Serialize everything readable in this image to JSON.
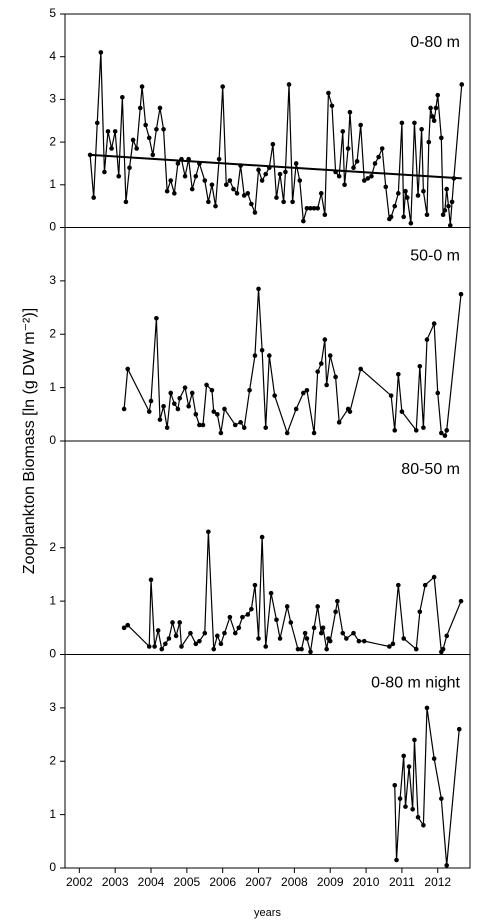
{
  "chart_data": [
    {
      "type": "line",
      "label": "0-80 m",
      "ylabel": "Zooplankton Biomass [ln (g DW m⁻²)]",
      "xlim": [
        2001.6,
        2012.9
      ],
      "ylim": [
        0,
        5
      ],
      "yticks": [
        0,
        1,
        2,
        3,
        4,
        5
      ],
      "series": [
        {
          "color": "#000000",
          "x": [
            2002.3,
            2002.4,
            2002.5,
            2002.6,
            2002.7,
            2002.8,
            2002.9,
            2003.0,
            2003.1,
            2003.2,
            2003.3,
            2003.4,
            2003.5,
            2003.6,
            2003.7,
            2003.75,
            2003.85,
            2003.95,
            2004.05,
            2004.15,
            2004.25,
            2004.35,
            2004.45,
            2004.55,
            2004.65,
            2004.75,
            2004.85,
            2004.95,
            2005.05,
            2005.15,
            2005.25,
            2005.35,
            2005.5,
            2005.6,
            2005.7,
            2005.8,
            2005.9,
            2006.0,
            2006.1,
            2006.2,
            2006.3,
            2006.4,
            2006.5,
            2006.6,
            2006.7,
            2006.8,
            2006.9,
            2007.0,
            2007.1,
            2007.2,
            2007.3,
            2007.4,
            2007.5,
            2007.6,
            2007.7,
            2007.75,
            2007.85,
            2007.95,
            2008.05,
            2008.15,
            2008.25,
            2008.35,
            2008.45,
            2008.55,
            2008.65,
            2008.75,
            2008.85,
            2008.95,
            2009.05,
            2009.15,
            2009.25,
            2009.35,
            2009.4,
            2009.5,
            2009.55,
            2009.65,
            2009.75,
            2009.85,
            2009.95,
            2010.05,
            2010.15,
            2010.25,
            2010.35,
            2010.45,
            2010.55,
            2010.65,
            2010.7,
            2010.8,
            2010.9,
            2011.0,
            2011.05,
            2011.1,
            2011.15,
            2011.25,
            2011.35,
            2011.45,
            2011.55,
            2011.6,
            2011.7,
            2011.75,
            2011.8,
            2011.85,
            2011.9,
            2011.95,
            2012.0,
            2012.1,
            2012.15,
            2012.2,
            2012.25,
            2012.3,
            2012.35,
            2012.4,
            2012.45,
            2012.67
          ],
          "values": [
            1.7,
            0.7,
            2.45,
            4.1,
            1.3,
            2.25,
            1.85,
            2.25,
            1.2,
            3.05,
            0.6,
            1.4,
            2.05,
            1.85,
            2.8,
            3.3,
            2.4,
            2.1,
            1.7,
            2.3,
            2.8,
            2.3,
            0.85,
            1.1,
            0.8,
            1.5,
            1.6,
            1.2,
            1.6,
            0.9,
            1.2,
            1.5,
            1.1,
            0.6,
            1.0,
            0.5,
            1.6,
            3.3,
            1.0,
            1.1,
            0.9,
            0.8,
            1.45,
            0.75,
            0.8,
            0.55,
            0.35,
            1.35,
            1.1,
            1.25,
            1.4,
            1.95,
            0.7,
            1.25,
            0.6,
            1.3,
            3.35,
            0.6,
            1.5,
            1.1,
            0.15,
            0.45,
            0.45,
            0.45,
            0.45,
            0.8,
            0.3,
            3.15,
            2.85,
            1.3,
            1.2,
            2.25,
            1.0,
            1.85,
            2.7,
            1.4,
            1.55,
            2.4,
            1.1,
            1.15,
            1.2,
            1.5,
            1.65,
            1.85,
            0.95,
            0.2,
            0.25,
            0.5,
            0.8,
            2.45,
            0.25,
            0.85,
            0.7,
            0.1,
            2.45,
            0.75,
            2.3,
            0.85,
            0.3,
            2.0,
            2.8,
            2.6,
            2.5,
            2.8,
            3.1,
            2.1,
            0.3,
            0.4,
            0.9,
            0.5,
            0.05,
            0.6,
            1.15,
            3.35
          ]
        }
      ],
      "trend": {
        "x": [
          2002.3,
          2012.67
        ],
        "values": [
          1.7,
          1.15
        ]
      }
    },
    {
      "type": "line",
      "label": "50-0 m",
      "xlim": [
        2001.6,
        2012.9
      ],
      "ylim": [
        0,
        4
      ],
      "yticks": [
        0,
        1,
        2,
        3
      ],
      "series": [
        {
          "color": "#000000",
          "x": [
            2003.25,
            2003.35,
            2003.95,
            2004.0,
            2004.15,
            2004.25,
            2004.35,
            2004.45,
            2004.55,
            2004.65,
            2004.75,
            2004.8,
            2004.95,
            2005.05,
            2005.15,
            2005.25,
            2005.35,
            2005.45,
            2005.55,
            2005.7,
            2005.75,
            2005.85,
            2005.95,
            2006.05,
            2006.35,
            2006.5,
            2006.6,
            2006.75,
            2006.9,
            2007.0,
            2007.1,
            2007.2,
            2007.3,
            2007.45,
            2007.8,
            2008.05,
            2008.25,
            2008.35,
            2008.55,
            2008.65,
            2008.75,
            2008.85,
            2008.9,
            2009.0,
            2009.15,
            2009.25,
            2009.5,
            2009.55,
            2009.85,
            2010.7,
            2010.8,
            2010.9,
            2011.0,
            2011.4,
            2011.5,
            2011.6,
            2011.7,
            2011.9,
            2012.0,
            2012.1,
            2012.2,
            2012.25,
            2012.65
          ],
          "values": [
            0.6,
            1.35,
            0.55,
            0.75,
            2.3,
            0.4,
            0.65,
            0.25,
            0.9,
            0.7,
            0.6,
            0.8,
            1.0,
            0.65,
            0.9,
            0.5,
            0.3,
            0.3,
            1.05,
            0.95,
            0.55,
            0.5,
            0.15,
            0.6,
            0.3,
            0.35,
            0.25,
            0.95,
            1.6,
            2.85,
            1.7,
            0.25,
            1.6,
            0.85,
            0.15,
            0.6,
            0.9,
            0.95,
            0.15,
            1.3,
            1.45,
            1.9,
            1.05,
            1.6,
            1.2,
            0.35,
            0.6,
            0.55,
            1.35,
            0.85,
            0.2,
            1.25,
            0.55,
            0.2,
            1.4,
            0.25,
            1.9,
            2.2,
            0.9,
            0.15,
            0.1,
            0.2,
            2.75
          ]
        }
      ]
    },
    {
      "type": "line",
      "label": "80-50 m",
      "xlim": [
        2001.6,
        2012.9
      ],
      "ylim": [
        0,
        4
      ],
      "yticks": [
        0,
        1,
        2
      ],
      "series": [
        {
          "color": "#000000",
          "x": [
            2003.25,
            2003.35,
            2003.95,
            2004.0,
            2004.1,
            2004.2,
            2004.3,
            2004.4,
            2004.5,
            2004.6,
            2004.7,
            2004.8,
            2004.85,
            2005.1,
            2005.25,
            2005.35,
            2005.5,
            2005.6,
            2005.75,
            2005.85,
            2005.95,
            2006.05,
            2006.2,
            2006.35,
            2006.45,
            2006.55,
            2006.7,
            2006.8,
            2006.9,
            2007.0,
            2007.1,
            2007.2,
            2007.35,
            2007.5,
            2007.6,
            2007.8,
            2007.9,
            2008.1,
            2008.2,
            2008.3,
            2008.35,
            2008.45,
            2008.55,
            2008.65,
            2008.75,
            2008.8,
            2008.9,
            2008.95,
            2009.0,
            2009.15,
            2009.2,
            2009.35,
            2009.45,
            2009.65,
            2009.8,
            2009.95,
            2010.65,
            2010.75,
            2010.9,
            2011.05,
            2011.4,
            2011.5,
            2011.65,
            2011.9,
            2012.1,
            2012.15,
            2012.25,
            2012.65
          ],
          "values": [
            0.5,
            0.55,
            0.15,
            1.4,
            0.15,
            0.45,
            0.1,
            0.2,
            0.3,
            0.6,
            0.35,
            0.6,
            0.15,
            0.4,
            0.2,
            0.25,
            0.4,
            2.3,
            0.1,
            0.35,
            0.2,
            0.4,
            0.7,
            0.4,
            0.5,
            0.7,
            0.75,
            0.85,
            1.3,
            0.3,
            2.2,
            0.15,
            1.15,
            0.65,
            0.3,
            0.9,
            0.6,
            0.1,
            0.1,
            0.4,
            0.3,
            0.05,
            0.5,
            0.9,
            0.4,
            0.5,
            0.1,
            0.3,
            0.25,
            0.8,
            1.0,
            0.4,
            0.3,
            0.4,
            0.25,
            0.25,
            0.15,
            0.2,
            1.3,
            0.3,
            0.1,
            0.8,
            1.3,
            1.45,
            0.05,
            0.1,
            0.35,
            1.0
          ]
        }
      ]
    },
    {
      "type": "line",
      "label": "0-80 m night",
      "xlabel": "years",
      "xlim": [
        2001.6,
        2012.9
      ],
      "ylim": [
        0,
        4
      ],
      "yticks": [
        0,
        1,
        2,
        3
      ],
      "xticks": [
        2002,
        2003,
        2004,
        2005,
        2006,
        2007,
        2008,
        2009,
        2010,
        2011,
        2012
      ],
      "series": [
        {
          "color": "#000000",
          "x": [
            2010.8,
            2010.85,
            2010.95,
            2011.05,
            2011.1,
            2011.2,
            2011.3,
            2011.35,
            2011.45,
            2011.6,
            2011.7,
            2011.9,
            2012.1,
            2012.25,
            2012.6
          ],
          "values": [
            1.55,
            0.15,
            1.3,
            2.1,
            1.15,
            1.9,
            1.1,
            2.4,
            0.95,
            0.8,
            3.0,
            2.05,
            1.3,
            0.05,
            2.6
          ]
        }
      ]
    }
  ]
}
